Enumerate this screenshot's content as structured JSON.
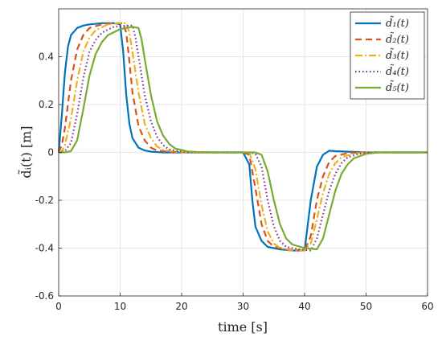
{
  "chart_data": {
    "type": "line",
    "xlabel": "time [s]",
    "ylabel": "d̃ᵢ(t) [m]",
    "xlim": [
      0,
      60
    ],
    "ylim": [
      -0.6,
      0.6
    ],
    "xticks": [
      0,
      10,
      20,
      30,
      40,
      50,
      60
    ],
    "xtick_labels": [
      "0",
      "10",
      "20",
      "30",
      "40",
      "50",
      "60"
    ],
    "yticks": [
      -0.6,
      -0.4,
      -0.2,
      0,
      0.2,
      0.4
    ],
    "ytick_labels": [
      "-0.6",
      "-0.4",
      "-0.2",
      "0",
      "0.2",
      "0.4"
    ],
    "grid": true,
    "legend_position": "top-right",
    "series": [
      {
        "name": "d̃₁(t)",
        "color": "#0072BD",
        "dash": "solid",
        "x": [
          0,
          0.5,
          1,
          1.5,
          2,
          3,
          4,
          5,
          7,
          9,
          10,
          10.5,
          11,
          11.5,
          12,
          13,
          14,
          15,
          17,
          20,
          25,
          30,
          31,
          31.5,
          32,
          33,
          34,
          36,
          38,
          40,
          41,
          42,
          43,
          44,
          45,
          50,
          60
        ],
        "y": [
          0,
          0.15,
          0.33,
          0.44,
          0.49,
          0.52,
          0.53,
          0.535,
          0.54,
          0.54,
          0.535,
          0.42,
          0.24,
          0.12,
          0.06,
          0.02,
          0.008,
          0.003,
          0,
          0,
          0,
          0,
          -0.05,
          -0.2,
          -0.31,
          -0.37,
          -0.395,
          -0.405,
          -0.41,
          -0.41,
          -0.2,
          -0.06,
          -0.01,
          0.007,
          0.005,
          0,
          0
        ]
      },
      {
        "name": "d̃₂(t)",
        "color": "#D95319",
        "dash": "dashed",
        "x": [
          0,
          0.5,
          1,
          2,
          3,
          4,
          5,
          7,
          9,
          10.5,
          11,
          11.5,
          12,
          13,
          14,
          15,
          16,
          18,
          20,
          25,
          30,
          31,
          32,
          33,
          34,
          35,
          37,
          40,
          41,
          42,
          43,
          44,
          45,
          47,
          50,
          60
        ],
        "y": [
          0,
          0.03,
          0.1,
          0.3,
          0.43,
          0.49,
          0.52,
          0.535,
          0.54,
          0.54,
          0.5,
          0.38,
          0.25,
          0.11,
          0.05,
          0.02,
          0.008,
          0.002,
          0,
          0,
          0,
          -0.01,
          -0.15,
          -0.3,
          -0.37,
          -0.395,
          -0.405,
          -0.41,
          -0.35,
          -0.2,
          -0.1,
          -0.04,
          -0.015,
          -0.003,
          0,
          0
        ]
      },
      {
        "name": "d̃₃(t)",
        "color": "#EDB120",
        "dash": "dashdot",
        "x": [
          0,
          0.5,
          1,
          2,
          3,
          4,
          5,
          6,
          8,
          10,
          11,
          11.5,
          12,
          13,
          14,
          15,
          16,
          17,
          19,
          21,
          25,
          30,
          31,
          32,
          33,
          34,
          35,
          36,
          38,
          40,
          41,
          42,
          43,
          44,
          45,
          46,
          48,
          50,
          60
        ],
        "y": [
          0,
          0.005,
          0.03,
          0.14,
          0.3,
          0.42,
          0.48,
          0.51,
          0.535,
          0.54,
          0.54,
          0.5,
          0.42,
          0.25,
          0.12,
          0.06,
          0.025,
          0.01,
          0.003,
          0,
          0,
          0,
          -0.002,
          -0.07,
          -0.22,
          -0.33,
          -0.38,
          -0.4,
          -0.41,
          -0.41,
          -0.38,
          -0.28,
          -0.17,
          -0.09,
          -0.045,
          -0.02,
          -0.005,
          0,
          0
        ]
      },
      {
        "name": "d̃₄(t)",
        "color": "#7E2F8E",
        "dash": "dotted",
        "x": [
          0,
          1,
          2,
          3,
          4,
          5,
          6,
          7,
          9,
          11,
          12,
          12.5,
          13,
          14,
          15,
          16,
          17,
          18,
          20,
          22,
          25,
          30,
          31,
          32,
          33,
          34,
          35,
          36,
          37,
          39,
          41,
          42,
          43,
          44,
          45,
          46,
          47,
          49,
          51,
          60
        ],
        "y": [
          0,
          0.005,
          0.04,
          0.16,
          0.31,
          0.42,
          0.47,
          0.5,
          0.525,
          0.53,
          0.53,
          0.48,
          0.4,
          0.24,
          0.13,
          0.065,
          0.03,
          0.012,
          0.003,
          0,
          0,
          0,
          0,
          -0.005,
          -0.06,
          -0.2,
          -0.31,
          -0.37,
          -0.395,
          -0.405,
          -0.41,
          -0.36,
          -0.26,
          -0.16,
          -0.09,
          -0.045,
          -0.02,
          -0.005,
          0,
          0
        ]
      },
      {
        "name": "d̃₅(t)",
        "color": "#77AC30",
        "dash": "solid",
        "x": [
          0,
          1,
          2,
          3,
          4,
          5,
          6,
          7,
          8,
          10,
          12,
          13,
          13.5,
          14,
          15,
          16,
          17,
          18,
          19,
          21,
          23,
          26,
          30,
          32,
          33,
          34,
          35,
          36,
          37,
          38,
          40,
          42,
          43,
          44,
          45,
          46,
          47,
          48,
          50,
          52,
          60
        ],
        "y": [
          0,
          0,
          0.005,
          0.05,
          0.18,
          0.32,
          0.41,
          0.46,
          0.49,
          0.515,
          0.525,
          0.52,
          0.47,
          0.39,
          0.24,
          0.13,
          0.07,
          0.035,
          0.016,
          0.004,
          0.001,
          0,
          0,
          0,
          -0.01,
          -0.08,
          -0.2,
          -0.3,
          -0.36,
          -0.385,
          -0.4,
          -0.405,
          -0.36,
          -0.26,
          -0.16,
          -0.09,
          -0.05,
          -0.025,
          -0.006,
          0,
          0
        ]
      }
    ]
  }
}
